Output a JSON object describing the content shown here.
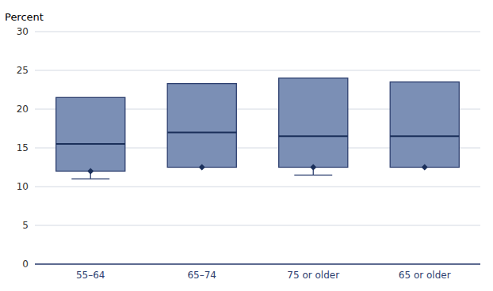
{
  "chart_data": {
    "type": "box",
    "ylabel": "Percent",
    "categories": [
      "55–64",
      "65–74",
      "75 or older",
      "65 or older"
    ],
    "boxes": [
      {
        "whisker_low": 11.0,
        "q1": 12.0,
        "median": 15.5,
        "q3": 21.5,
        "mean": 12.0
      },
      {
        "q1": 12.5,
        "median": 17.0,
        "q3": 23.3,
        "mean": 12.5
      },
      {
        "whisker_low": 11.5,
        "q1": 12.5,
        "median": 16.5,
        "q3": 24.0,
        "mean": 12.5
      },
      {
        "q1": 12.5,
        "median": 16.5,
        "q3": 23.5,
        "mean": 12.5
      }
    ],
    "color": "#7B8FB5",
    "ylim": [
      0,
      30
    ],
    "yticks": [
      0,
      5,
      10,
      15,
      20,
      25,
      30
    ],
    "grid": true
  }
}
